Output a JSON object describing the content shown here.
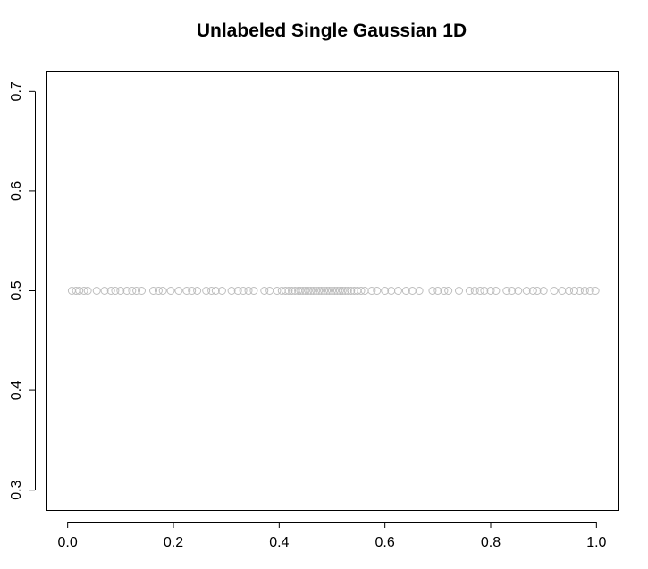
{
  "chart_data": {
    "type": "scatter",
    "title": "Unlabeled Single Gaussian 1D",
    "xlabel": "",
    "ylabel": "",
    "xlim": [
      -0.04,
      1.04
    ],
    "ylim": [
      0.28,
      0.72
    ],
    "x_ticks": [
      0.0,
      0.2,
      0.4,
      0.6,
      0.8,
      1.0
    ],
    "x_tick_labels": [
      "0.0",
      "0.2",
      "0.4",
      "0.6",
      "0.8",
      "1.0"
    ],
    "y_ticks": [
      0.3,
      0.4,
      0.5,
      0.6,
      0.7
    ],
    "y_tick_labels": [
      "0.3",
      "0.4",
      "0.5",
      "0.6",
      "0.7"
    ],
    "grid": false,
    "legend": "none",
    "marker": "open-circle",
    "point_color": "#bdbdbd",
    "series": [
      {
        "x": [
          0.008,
          0.016,
          0.022,
          0.031,
          0.038,
          0.055,
          0.07,
          0.082,
          0.09,
          0.1,
          0.112,
          0.122,
          0.13,
          0.14,
          0.162,
          0.172,
          0.18,
          0.195,
          0.21,
          0.225,
          0.235,
          0.245,
          0.262,
          0.272,
          0.28,
          0.292,
          0.31,
          0.322,
          0.332,
          0.342,
          0.352,
          0.372,
          0.382,
          0.396,
          0.405,
          0.412,
          0.418,
          0.424,
          0.43,
          0.436,
          0.44,
          0.445,
          0.45,
          0.455,
          0.46,
          0.465,
          0.47,
          0.475,
          0.48,
          0.485,
          0.49,
          0.495,
          0.5,
          0.505,
          0.51,
          0.515,
          0.52,
          0.525,
          0.53,
          0.536,
          0.542,
          0.548,
          0.555,
          0.562,
          0.575,
          0.585,
          0.6,
          0.612,
          0.625,
          0.64,
          0.652,
          0.665,
          0.69,
          0.7,
          0.712,
          0.72,
          0.74,
          0.76,
          0.77,
          0.78,
          0.788,
          0.8,
          0.81,
          0.83,
          0.84,
          0.852,
          0.868,
          0.88,
          0.888,
          0.9,
          0.92,
          0.935,
          0.948,
          0.958,
          0.968,
          0.978,
          0.988,
          0.998
        ],
        "y": 0.5
      }
    ]
  }
}
